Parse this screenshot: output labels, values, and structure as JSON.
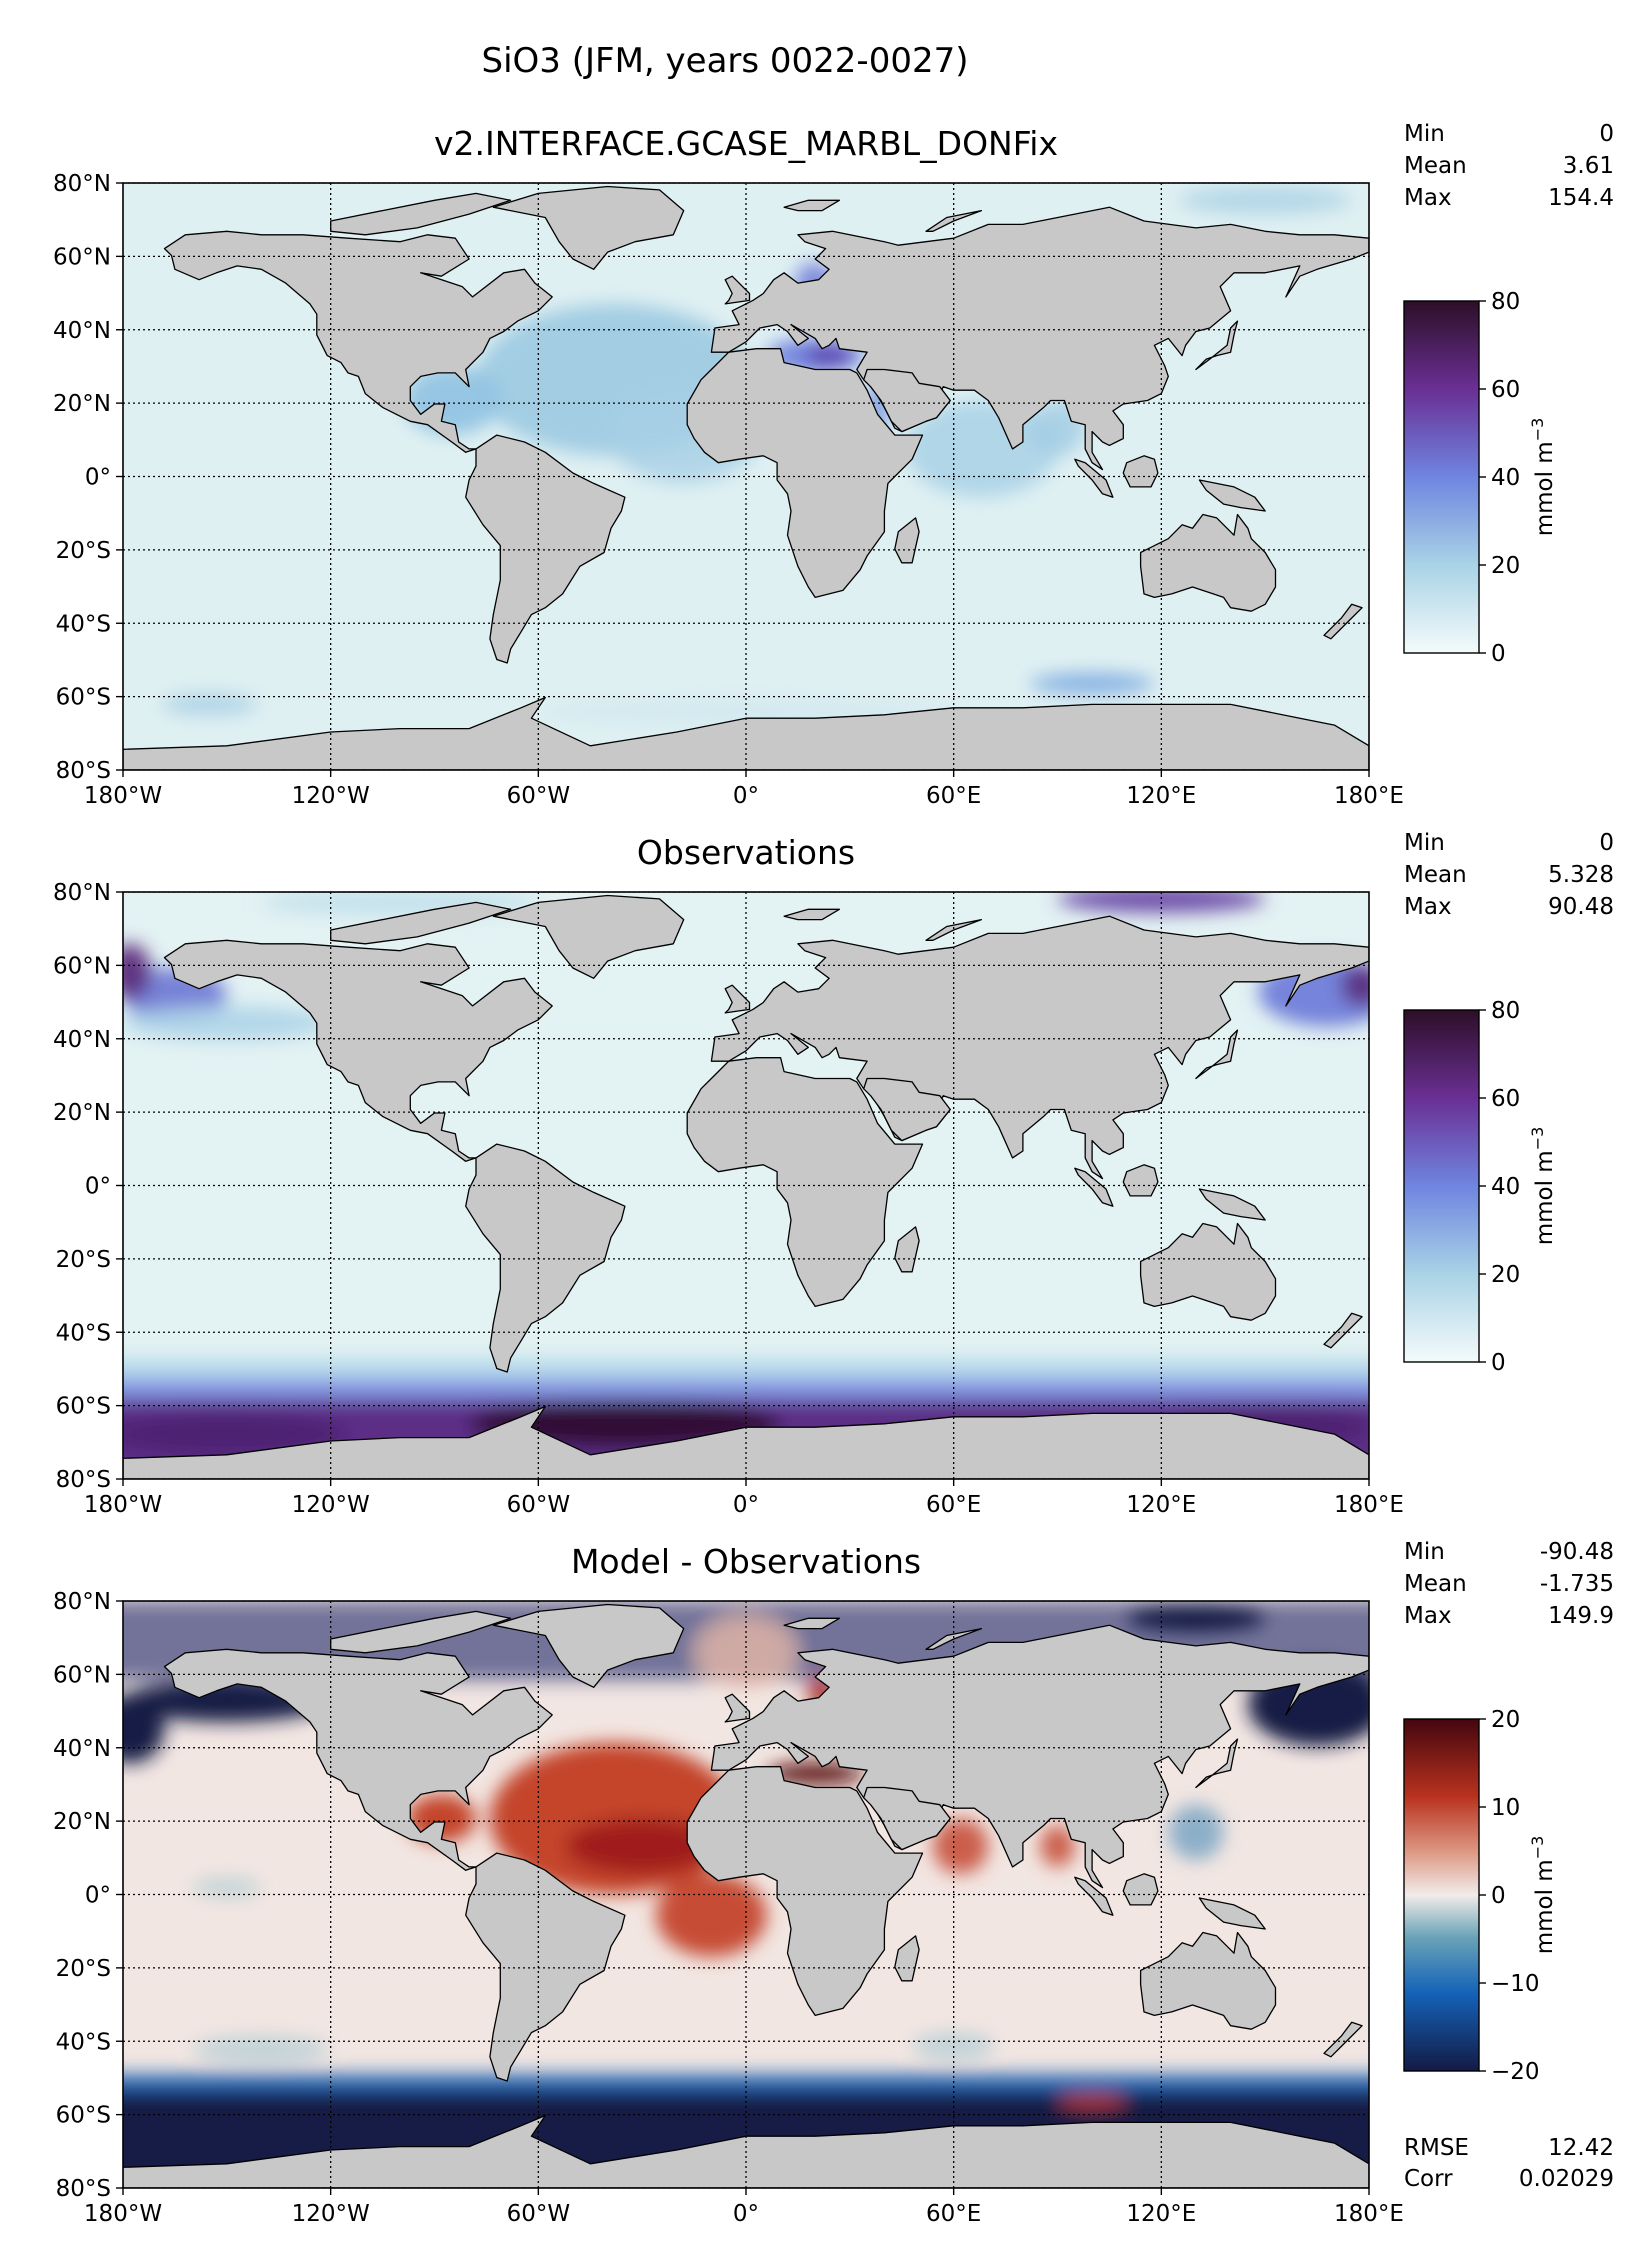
{
  "title": "SiO3 (JFM, years 0022-0027)",
  "x_ticks": [
    "180°W",
    "120°W",
    "60°W",
    "0°",
    "60°E",
    "120°E",
    "180°E"
  ],
  "y_ticks": [
    "80°N",
    "60°N",
    "40°N",
    "20°N",
    "0°",
    "20°S",
    "40°S",
    "60°S",
    "80°S"
  ],
  "colors": {
    "land": "#c8c8c8",
    "ocean_low": "#e0f1f3",
    "ocean_mid": "#9ccbe2",
    "seq_high": "#5b2a7c",
    "seq_top": "#2f0f2c",
    "diff_pos": "#c23b22",
    "diff_neg": "#121c4e",
    "diff_zero": "#f1ecea"
  },
  "panels": [
    {
      "title": "v2.INTERFACE.GCASE_MARBL_DONFix",
      "stats": [
        {
          "label": "Min",
          "value": "0"
        },
        {
          "label": "Mean",
          "value": "3.61"
        },
        {
          "label": "Max",
          "value": "154.4"
        }
      ],
      "colorbar": {
        "type": "sequential",
        "ticks": [
          "80",
          "60",
          "40",
          "20",
          "0"
        ],
        "label": "mmol m",
        "label_exp": "−3",
        "range": [
          0,
          80
        ]
      },
      "extra_stats": []
    },
    {
      "title": "Observations",
      "stats": [
        {
          "label": "Min",
          "value": "0"
        },
        {
          "label": "Mean",
          "value": "5.328"
        },
        {
          "label": "Max",
          "value": "90.48"
        }
      ],
      "colorbar": {
        "type": "sequential",
        "ticks": [
          "80",
          "60",
          "40",
          "20",
          "0"
        ],
        "label": "mmol m",
        "label_exp": "−3",
        "range": [
          0,
          80
        ]
      },
      "extra_stats": []
    },
    {
      "title": "Model - Observations",
      "stats": [
        {
          "label": "Min",
          "value": "-90.48"
        },
        {
          "label": "Mean",
          "value": "-1.735"
        },
        {
          "label": "Max",
          "value": "149.9"
        }
      ],
      "colorbar": {
        "type": "diverging",
        "ticks": [
          "20",
          "10",
          "0",
          "−10",
          "−20"
        ],
        "label": "mmol m",
        "label_exp": "−3",
        "range": [
          -20,
          20
        ]
      },
      "extra_stats": [
        {
          "label": "RMSE",
          "value": "12.42"
        },
        {
          "label": "Corr",
          "value": "0.02029"
        }
      ]
    }
  ]
}
